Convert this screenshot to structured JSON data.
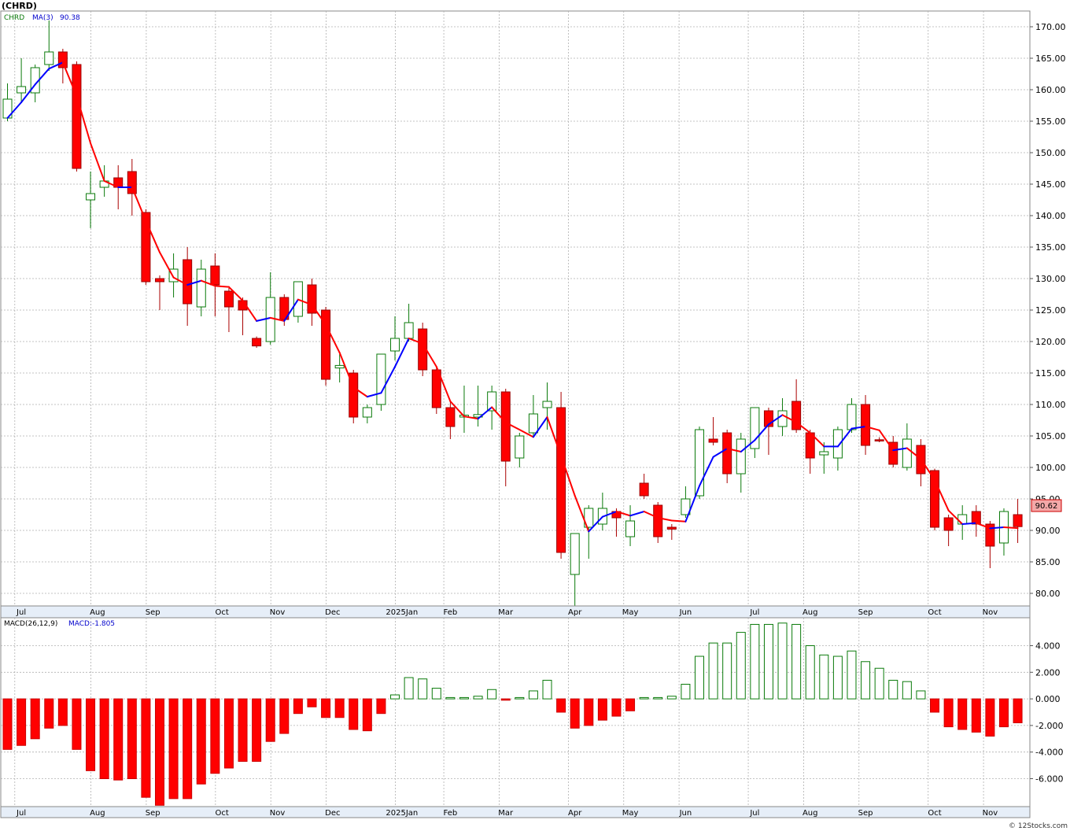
{
  "header": {
    "symbol_title": "(CHRD)",
    "legend_symbol": "CHRD",
    "legend_ma": "MA(3)",
    "legend_ma_value": "90.38",
    "last_price": "90.62",
    "macd_label": "MACD(26,12,9)",
    "macd_value_label": "MACD:-1.805",
    "copyright": "© 12Stocks.com"
  },
  "colors": {
    "up": "#0a7a0a",
    "down": "#ff0000",
    "ma_up": "#0000ff",
    "ma_down": "#ff0000",
    "grid": "#b0b0b0",
    "axis_band": "#e6eef8"
  },
  "chart_data": [
    {
      "type": "candlestick",
      "title": "(CHRD)",
      "ylim": [
        78,
        172.5
      ],
      "y_ticks": [
        "80.00",
        "85.00",
        "90.00",
        "95.00",
        "100.00",
        "105.00",
        "110.00",
        "115.00",
        "120.00",
        "125.00",
        "130.00",
        "135.00",
        "140.00",
        "145.00",
        "150.00",
        "155.00",
        "160.00",
        "165.00",
        "170.00"
      ],
      "x_labels": [
        "Jul",
        "Aug",
        "Sep",
        "Oct",
        "Nov",
        "Dec",
        "2025Jan",
        "Feb",
        "Mar",
        "Apr",
        "May",
        "Jun",
        "Jul",
        "Aug",
        "Sep",
        "Oct",
        "Nov"
      ],
      "x_label_weeks": [
        1,
        6.5,
        10.5,
        15.5,
        19.5,
        23.5,
        28.5,
        32,
        36,
        41,
        45,
        49,
        54,
        58,
        62,
        67,
        71
      ],
      "grid": true,
      "candles": [
        {
          "o": 155.5,
          "h": 161,
          "l": 155,
          "c": 158.5
        },
        {
          "o": 159.5,
          "h": 165,
          "l": 158,
          "c": 160.5
        },
        {
          "o": 159.5,
          "h": 164,
          "l": 158,
          "c": 163.5
        },
        {
          "o": 164,
          "h": 171,
          "l": 163,
          "c": 166
        },
        {
          "o": 166,
          "h": 166.5,
          "l": 161,
          "c": 163.5
        },
        {
          "o": 164,
          "h": 164.5,
          "l": 147,
          "c": 147.5
        },
        {
          "o": 142.5,
          "h": 147,
          "l": 138,
          "c": 143.5
        },
        {
          "o": 144.5,
          "h": 148,
          "l": 143,
          "c": 145.5
        },
        {
          "o": 146,
          "h": 148,
          "l": 141,
          "c": 144.5
        },
        {
          "o": 147,
          "h": 149,
          "l": 140,
          "c": 143.5
        },
        {
          "o": 140.5,
          "h": 141,
          "l": 129,
          "c": 129.5
        },
        {
          "o": 130,
          "h": 130.5,
          "l": 125,
          "c": 129.5
        },
        {
          "o": 129.5,
          "h": 134,
          "l": 127,
          "c": 131.5
        },
        {
          "o": 133,
          "h": 135,
          "l": 122.5,
          "c": 126
        },
        {
          "o": 125.5,
          "h": 133,
          "l": 124,
          "c": 131.5
        },
        {
          "o": 132,
          "h": 134,
          "l": 124,
          "c": 129
        },
        {
          "o": 128,
          "h": 128.5,
          "l": 121.5,
          "c": 125.5
        },
        {
          "o": 126.5,
          "h": 127,
          "l": 121,
          "c": 125
        },
        {
          "o": 120.5,
          "h": 120.8,
          "l": 119,
          "c": 119.3
        },
        {
          "o": 120,
          "h": 131,
          "l": 119.5,
          "c": 127
        },
        {
          "o": 127,
          "h": 127.5,
          "l": 122.5,
          "c": 123.5
        },
        {
          "o": 124,
          "h": 129.5,
          "l": 123,
          "c": 129.5
        },
        {
          "o": 129,
          "h": 130,
          "l": 122.5,
          "c": 124.5
        },
        {
          "o": 125,
          "h": 125.5,
          "l": 113,
          "c": 114
        },
        {
          "o": 115.8,
          "h": 118,
          "l": 113.5,
          "c": 116.2
        },
        {
          "o": 115,
          "h": 115.5,
          "l": 107,
          "c": 108
        },
        {
          "o": 108,
          "h": 110,
          "l": 107,
          "c": 109.5
        },
        {
          "o": 110,
          "h": 118,
          "l": 109,
          "c": 118
        },
        {
          "o": 118.5,
          "h": 124,
          "l": 117,
          "c": 120.5
        },
        {
          "o": 120.5,
          "h": 126,
          "l": 120,
          "c": 123
        },
        {
          "o": 122,
          "h": 123,
          "l": 114.5,
          "c": 115.5
        },
        {
          "o": 115.5,
          "h": 116,
          "l": 108.5,
          "c": 109.5
        },
        {
          "o": 109.5,
          "h": 110.5,
          "l": 104.5,
          "c": 106.5
        },
        {
          "o": 108,
          "h": 113,
          "l": 105.5,
          "c": 108.3
        },
        {
          "o": 108,
          "h": 113,
          "l": 106.5,
          "c": 108.4
        },
        {
          "o": 109,
          "h": 113,
          "l": 106,
          "c": 112
        },
        {
          "o": 112,
          "h": 112.5,
          "l": 97,
          "c": 101
        },
        {
          "o": 101.5,
          "h": 105.5,
          "l": 100,
          "c": 105
        },
        {
          "o": 105.5,
          "h": 111.5,
          "l": 105,
          "c": 108.5
        },
        {
          "o": 109.5,
          "h": 113.5,
          "l": 106,
          "c": 110.5
        },
        {
          "o": 109.5,
          "h": 112,
          "l": 85.5,
          "c": 86.5
        },
        {
          "o": 83,
          "h": 89.5,
          "l": 78,
          "c": 89.5
        },
        {
          "o": 90.5,
          "h": 94,
          "l": 85.5,
          "c": 93.5
        },
        {
          "o": 91,
          "h": 96,
          "l": 90,
          "c": 93.5
        },
        {
          "o": 93,
          "h": 93.5,
          "l": 89,
          "c": 92
        },
        {
          "o": 89,
          "h": 94,
          "l": 87.5,
          "c": 91.5
        },
        {
          "o": 97.5,
          "h": 99,
          "l": 95,
          "c": 95.5
        },
        {
          "o": 94,
          "h": 94.5,
          "l": 88,
          "c": 89
        },
        {
          "o": 90.5,
          "h": 91,
          "l": 88.5,
          "c": 90.2
        },
        {
          "o": 92.5,
          "h": 97,
          "l": 92,
          "c": 95
        },
        {
          "o": 95.5,
          "h": 106.5,
          "l": 95,
          "c": 106
        },
        {
          "o": 104.5,
          "h": 108,
          "l": 103.5,
          "c": 104
        },
        {
          "o": 105.5,
          "h": 106,
          "l": 97.5,
          "c": 99
        },
        {
          "o": 99,
          "h": 105.5,
          "l": 96,
          "c": 104.5
        },
        {
          "o": 103,
          "h": 109.5,
          "l": 101.5,
          "c": 109.5
        },
        {
          "o": 109,
          "h": 109.5,
          "l": 102,
          "c": 106.5
        },
        {
          "o": 106.5,
          "h": 111,
          "l": 105,
          "c": 109
        },
        {
          "o": 110.5,
          "h": 114,
          "l": 105.5,
          "c": 106
        },
        {
          "o": 105.5,
          "h": 106,
          "l": 99,
          "c": 101.5
        },
        {
          "o": 102,
          "h": 104,
          "l": 99,
          "c": 102.5
        },
        {
          "o": 101.5,
          "h": 106.5,
          "l": 99.5,
          "c": 106
        },
        {
          "o": 106,
          "h": 111,
          "l": 105.5,
          "c": 110
        },
        {
          "o": 110,
          "h": 111.5,
          "l": 102,
          "c": 103.5
        },
        {
          "o": 104.4,
          "h": 104.8,
          "l": 104,
          "c": 104.2
        },
        {
          "o": 104,
          "h": 105,
          "l": 100,
          "c": 100.5
        },
        {
          "o": 100,
          "h": 107,
          "l": 99.5,
          "c": 104.5
        },
        {
          "o": 103.5,
          "h": 104.5,
          "l": 97,
          "c": 99
        },
        {
          "o": 99.5,
          "h": 99.8,
          "l": 90,
          "c": 90.5
        },
        {
          "o": 92,
          "h": 92.5,
          "l": 87.5,
          "c": 90
        },
        {
          "o": 91,
          "h": 94,
          "l": 88.5,
          "c": 92.5
        },
        {
          "o": 93,
          "h": 94,
          "l": 89,
          "c": 91
        },
        {
          "o": 91,
          "h": 91.5,
          "l": 84,
          "c": 87.5
        },
        {
          "o": 88,
          "h": 93.5,
          "l": 86,
          "c": 93
        },
        {
          "o": 92.5,
          "h": 95,
          "l": 88,
          "c": 90.6
        }
      ]
    },
    {
      "type": "bar",
      "title": "MACD(26,12,9)",
      "ylim": [
        -8.1,
        6.1
      ],
      "y_ticks": [
        "-6.000",
        "-4.000",
        "-2.000",
        "0.000",
        "2.000",
        "4.000"
      ],
      "values": [
        -3.8,
        -3.5,
        -3.0,
        -2.2,
        -2.0,
        -3.8,
        -5.4,
        -6.0,
        -6.1,
        -6.0,
        -7.4,
        -8.0,
        -7.5,
        -7.5,
        -6.4,
        -5.6,
        -5.2,
        -4.7,
        -4.7,
        -3.2,
        -2.6,
        -1.1,
        -0.6,
        -1.4,
        -1.4,
        -2.3,
        -2.4,
        -1.1,
        0.3,
        1.6,
        1.5,
        0.8,
        0.1,
        0.1,
        0.2,
        0.7,
        -0.1,
        0.1,
        0.6,
        1.4,
        -1.0,
        -2.2,
        -2.0,
        -1.6,
        -1.3,
        -0.9,
        0.1,
        0.1,
        0.2,
        1.1,
        3.2,
        4.2,
        4.2,
        5.0,
        5.6,
        5.6,
        5.7,
        5.6,
        4.0,
        3.3,
        3.2,
        3.6,
        2.8,
        2.3,
        1.4,
        1.3,
        0.6,
        -1.0,
        -2.1,
        -2.3,
        -2.5,
        -2.8,
        -2.1,
        -1.8
      ]
    }
  ]
}
